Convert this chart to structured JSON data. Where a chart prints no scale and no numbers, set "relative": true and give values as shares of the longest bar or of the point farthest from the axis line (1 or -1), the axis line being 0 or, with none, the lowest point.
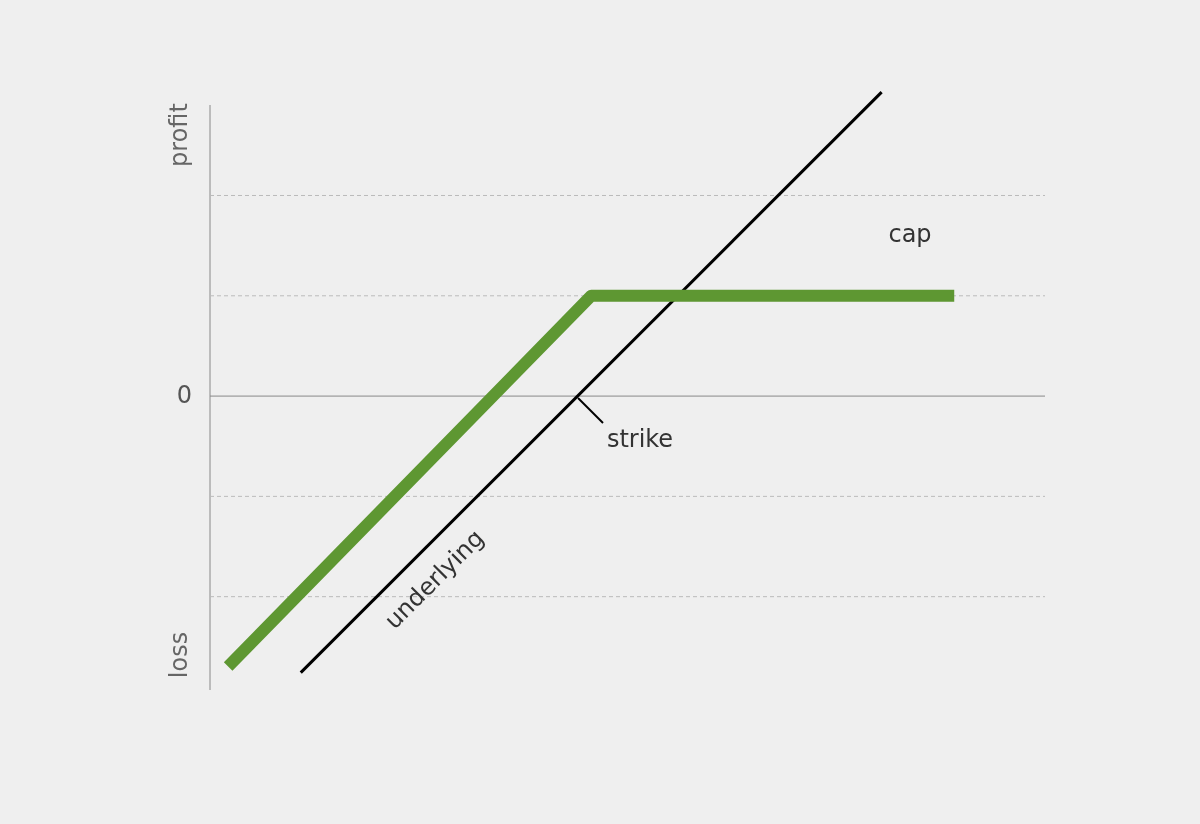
{
  "chart_data": {
    "type": "line",
    "relative": true,
    "categories": [
      null,
      null,
      null,
      null,
      null,
      null,
      null,
      null,
      null,
      null,
      null,
      null,
      null,
      null,
      null,
      null,
      null,
      null,
      null,
      null,
      null,
      null,
      null
    ],
    "series": [
      {
        "color": "#000000",
        "values": [
          null,
          null,
          -0.91,
          null,
          null,
          null,
          null,
          null,
          null,
          null,
          null,
          null,
          null,
          null,
          null,
          null,
          null,
          null,
          1.0,
          null,
          null,
          null,
          null
        ]
      },
      {
        "color": "#5e9732",
        "values": [
          -0.89,
          null,
          null,
          null,
          null,
          null,
          null,
          null,
          null,
          null,
          0.33,
          null,
          null,
          null,
          null,
          null,
          null,
          null,
          null,
          null,
          0.33,
          null,
          null
        ]
      }
    ],
    "ref_lines": [
      {
        "axis": "y",
        "value": 0,
        "label": "0",
        "color": "#888888",
        "line_style": "solid"
      },
      {
        "axis": "y",
        "value": 0.66,
        "color": "#bbbbbb",
        "line_style": "dashed"
      },
      {
        "axis": "y",
        "value": 0.33,
        "color": "#bbbbbb",
        "line_style": "dashed"
      },
      {
        "axis": "y",
        "value": -0.33,
        "color": "#bbbbbb",
        "line_style": "dashed"
      },
      {
        "axis": "y",
        "value": -0.66,
        "color": "#bbbbbb",
        "line_style": "dashed"
      }
    ],
    "annotations": [
      "profit",
      "loss",
      "cap",
      "strike",
      "underlying"
    ],
    "line_style": "solid"
  }
}
